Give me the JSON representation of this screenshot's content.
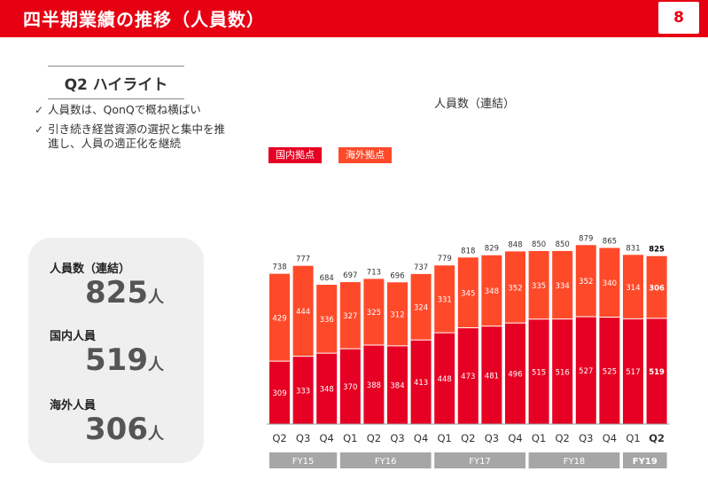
{
  "header": {
    "title": "四半期業績の推移（人員数）",
    "page_number": "8"
  },
  "highlight": {
    "title": "Q2 ハイライト",
    "bullets": [
      "人員数は、QonQで概ね横ばい",
      "引き続き経営資源の選択と集中を推進し、人員の適正化を継続"
    ]
  },
  "summary": {
    "total_label": "人員数（連結）",
    "total_value": "825",
    "total_unit": "人",
    "domestic_label": "国内人員",
    "domestic_value": "519",
    "domestic_unit": "人",
    "overseas_label": "海外人員",
    "overseas_value": "306",
    "overseas_unit": "人"
  },
  "colors": {
    "brand_red": "#e60012",
    "domestic": "#e60023",
    "overseas": "#ff4a2a",
    "fy_band": "#a6a6a6"
  },
  "chart_data": {
    "type": "bar",
    "stacked": true,
    "title": "人員数（連結）",
    "categories": [
      "Q2",
      "Q3",
      "Q4",
      "Q1",
      "Q2",
      "Q3",
      "Q4",
      "Q1",
      "Q2",
      "Q3",
      "Q4",
      "Q1",
      "Q2",
      "Q3",
      "Q4",
      "Q1",
      "Q2"
    ],
    "series": [
      {
        "name": "国内拠点",
        "values": [
          309,
          333,
          348,
          370,
          388,
          384,
          413,
          448,
          473,
          481,
          496,
          515,
          516,
          527,
          525,
          517,
          519
        ]
      },
      {
        "name": "海外拠点",
        "values": [
          429,
          444,
          336,
          327,
          325,
          312,
          324,
          331,
          345,
          348,
          352,
          335,
          334,
          352,
          340,
          314,
          306
        ]
      }
    ],
    "totals": [
      738,
      777,
      684,
      697,
      713,
      696,
      737,
      779,
      818,
      829,
      848,
      850,
      850,
      879,
      865,
      831,
      825
    ],
    "fiscal_years": [
      {
        "label": "FY15",
        "count": 3
      },
      {
        "label": "FY16",
        "count": 4
      },
      {
        "label": "FY17",
        "count": 4
      },
      {
        "label": "FY18",
        "count": 4
      },
      {
        "label": "FY19",
        "count": 2
      }
    ],
    "ylim": [
      0,
      900
    ],
    "highlight_last": true
  }
}
